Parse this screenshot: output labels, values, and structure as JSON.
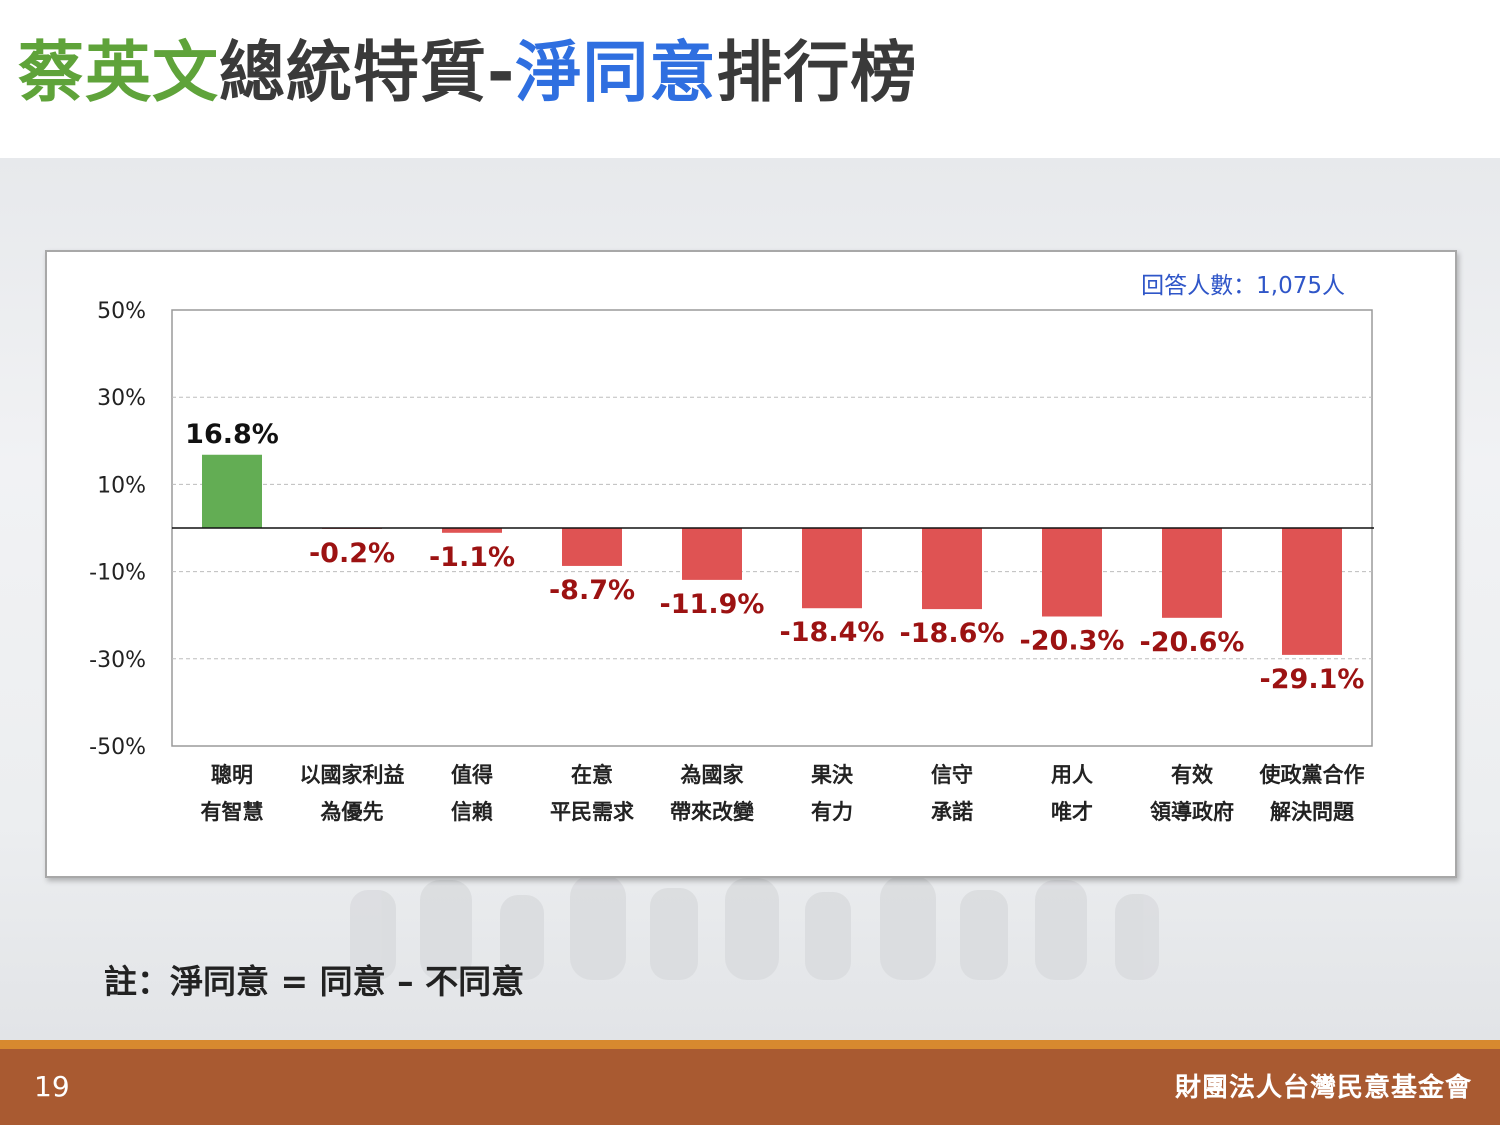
{
  "title": {
    "part1": "蔡英文",
    "part2": "總統特質-",
    "part3": "淨同意",
    "part4": "排行榜"
  },
  "respondents": "回答人數：1,075人",
  "note": "註：淨同意 = 同意 – 不同意",
  "footer": {
    "page_number": "19",
    "organization": "財團法人台灣民意基金會"
  },
  "colors": {
    "title_green": "#5fa33a",
    "title_blue": "#2f6fe0",
    "bar_positive": "#63ad54",
    "bar_negative": "#df5353",
    "label_negative": "#9c1212"
  },
  "chart_data": {
    "type": "bar",
    "title": "",
    "xlabel": "",
    "ylabel": "",
    "ylim": [
      -50,
      50
    ],
    "yticks": [
      50,
      30,
      10,
      -10,
      -30,
      -50
    ],
    "ytick_labels": [
      "50%",
      "30%",
      "10%",
      "-10%",
      "-30%",
      "-50%"
    ],
    "grid": true,
    "categories": [
      [
        "聰明",
        "有智慧"
      ],
      [
        "以國家利益",
        "為優先"
      ],
      [
        "值得",
        "信賴"
      ],
      [
        "在意",
        "平民需求"
      ],
      [
        "為國家",
        "帶來改變"
      ],
      [
        "果決",
        "有力"
      ],
      [
        "信守",
        "承諾"
      ],
      [
        "用人",
        "唯才"
      ],
      [
        "有效",
        "領導政府"
      ],
      [
        "使政黨合作",
        "解決問題"
      ]
    ],
    "values": [
      16.8,
      -0.2,
      -1.1,
      -8.7,
      -11.9,
      -18.4,
      -18.6,
      -20.3,
      -20.6,
      -29.1
    ],
    "value_labels": [
      "16.8%",
      "-0.2%",
      "-1.1%",
      "-8.7%",
      "-11.9%",
      "-18.4%",
      "-18.6%",
      "-20.3%",
      "-20.6%",
      "-29.1%"
    ]
  }
}
